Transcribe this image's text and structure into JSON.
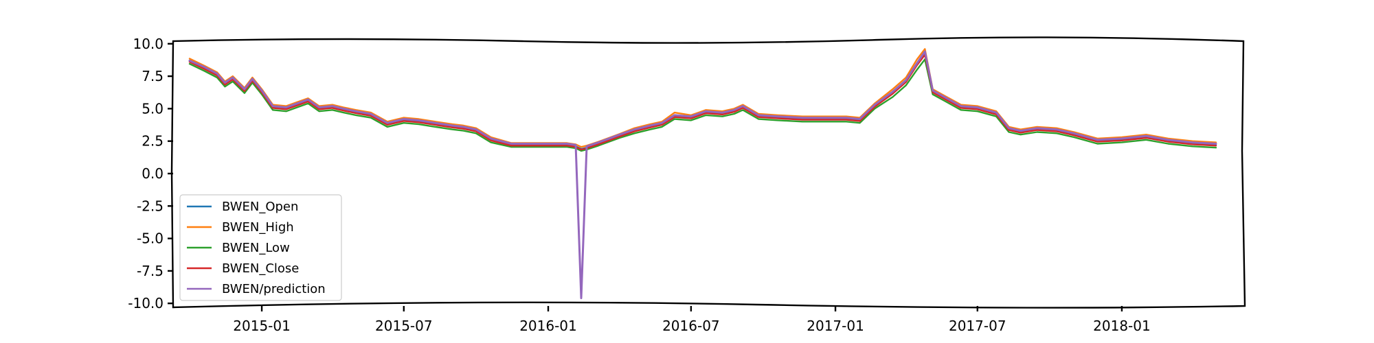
{
  "chart_data": {
    "type": "line",
    "title": "",
    "xlabel": "",
    "ylabel": "",
    "ylim": [
      -10.2,
      10.2
    ],
    "xlim": [
      "2014-09-10",
      "2018-06-05"
    ],
    "grid": false,
    "legend_position": "lower-left",
    "y_ticks": [
      {
        "value": 10.0,
        "label": "10.0"
      },
      {
        "value": 7.5,
        "label": "7.5"
      },
      {
        "value": 5.0,
        "label": "5.0"
      },
      {
        "value": 2.5,
        "label": "2.5"
      },
      {
        "value": 0.0,
        "label": "0.0"
      },
      {
        "value": -2.5,
        "label": "-2.5"
      },
      {
        "value": -5.0,
        "label": "-5.0"
      },
      {
        "value": -7.5,
        "label": "-7.5"
      },
      {
        "value": -10.0,
        "label": "-10.0"
      }
    ],
    "x_ticks": [
      {
        "value": "2015-01-01",
        "label": "2015-01"
      },
      {
        "value": "2015-07-01",
        "label": "2015-07"
      },
      {
        "value": "2016-01-01",
        "label": "2016-01"
      },
      {
        "value": "2016-07-01",
        "label": "2016-07"
      },
      {
        "value": "2017-01-01",
        "label": "2017-01"
      },
      {
        "value": "2017-07-01",
        "label": "2017-07"
      },
      {
        "value": "2018-01-01",
        "label": "2018-01"
      }
    ],
    "x": [
      "2014-10-01",
      "2014-10-20",
      "2014-11-05",
      "2014-11-15",
      "2014-11-25",
      "2014-12-10",
      "2014-12-20",
      "2015-01-01",
      "2015-01-15",
      "2015-02-01",
      "2015-02-15",
      "2015-03-01",
      "2015-03-15",
      "2015-04-01",
      "2015-04-15",
      "2015-05-01",
      "2015-05-20",
      "2015-06-10",
      "2015-07-01",
      "2015-07-20",
      "2015-08-10",
      "2015-09-01",
      "2015-09-15",
      "2015-10-01",
      "2015-10-20",
      "2015-11-15",
      "2015-12-10",
      "2016-01-05",
      "2016-01-25",
      "2016-02-05",
      "2016-02-12",
      "2016-02-19",
      "2016-03-05",
      "2016-04-01",
      "2016-04-20",
      "2016-05-10",
      "2016-05-25",
      "2016-06-10",
      "2016-07-01",
      "2016-07-20",
      "2016-08-10",
      "2016-08-25",
      "2016-09-05",
      "2016-09-25",
      "2016-10-20",
      "2016-11-20",
      "2016-12-20",
      "2017-01-15",
      "2017-02-01",
      "2017-02-20",
      "2017-03-15",
      "2017-04-01",
      "2017-04-15",
      "2017-04-25",
      "2017-05-05",
      "2017-05-20",
      "2017-06-10",
      "2017-07-01",
      "2017-07-25",
      "2017-08-10",
      "2017-08-25",
      "2017-09-15",
      "2017-10-10",
      "2017-11-01",
      "2017-12-01",
      "2018-01-01",
      "2018-02-01",
      "2018-03-01",
      "2018-04-01",
      "2018-05-01"
    ],
    "series": [
      {
        "name": "BWEN_Open",
        "color": "#1f77b4",
        "values": [
          8.65,
          8.1,
          7.6,
          6.9,
          7.3,
          6.4,
          7.2,
          6.3,
          5.1,
          5.0,
          5.3,
          5.6,
          5.0,
          5.1,
          4.9,
          4.7,
          4.5,
          3.8,
          4.1,
          4.0,
          3.8,
          3.6,
          3.5,
          3.3,
          2.6,
          2.2,
          2.2,
          2.2,
          2.2,
          2.1,
          1.9,
          2.0,
          2.3,
          2.9,
          3.3,
          3.6,
          3.8,
          4.4,
          4.3,
          4.7,
          4.6,
          4.8,
          5.1,
          4.4,
          4.3,
          4.2,
          4.2,
          4.2,
          4.1,
          5.2,
          6.2,
          7.1,
          8.4,
          9.2,
          6.3,
          5.8,
          5.1,
          5.0,
          4.6,
          3.4,
          3.2,
          3.4,
          3.3,
          3.0,
          2.5,
          2.6,
          2.8,
          2.5,
          2.3,
          2.2
        ]
      },
      {
        "name": "BWEN_High",
        "color": "#ff7f0e",
        "values": [
          8.85,
          8.3,
          7.8,
          7.1,
          7.5,
          6.6,
          7.4,
          6.5,
          5.3,
          5.2,
          5.5,
          5.8,
          5.2,
          5.3,
          5.1,
          4.9,
          4.7,
          4.0,
          4.3,
          4.2,
          4.0,
          3.8,
          3.7,
          3.5,
          2.8,
          2.35,
          2.35,
          2.35,
          2.35,
          2.25,
          2.05,
          2.15,
          2.45,
          3.05,
          3.5,
          3.8,
          4.0,
          4.7,
          4.5,
          4.9,
          4.8,
          5.0,
          5.3,
          4.6,
          4.5,
          4.4,
          4.4,
          4.4,
          4.3,
          5.4,
          6.5,
          7.4,
          8.8,
          9.6,
          6.5,
          6.0,
          5.3,
          5.2,
          4.8,
          3.6,
          3.4,
          3.6,
          3.5,
          3.2,
          2.7,
          2.8,
          3.0,
          2.7,
          2.5,
          2.4
        ]
      },
      {
        "name": "BWEN_Low",
        "color": "#2ca02c",
        "values": [
          8.45,
          7.9,
          7.4,
          6.7,
          7.1,
          6.2,
          7.0,
          6.1,
          4.9,
          4.8,
          5.1,
          5.4,
          4.8,
          4.9,
          4.7,
          4.5,
          4.3,
          3.6,
          3.9,
          3.8,
          3.6,
          3.4,
          3.3,
          3.1,
          2.4,
          2.05,
          2.05,
          2.05,
          2.05,
          1.95,
          1.75,
          1.85,
          2.15,
          2.75,
          3.1,
          3.4,
          3.6,
          4.2,
          4.1,
          4.5,
          4.4,
          4.6,
          4.9,
          4.2,
          4.1,
          4.0,
          4.0,
          4.0,
          3.9,
          5.0,
          5.9,
          6.8,
          8.0,
          8.8,
          6.1,
          5.6,
          4.9,
          4.8,
          4.4,
          3.2,
          3.0,
          3.2,
          3.1,
          2.8,
          2.3,
          2.4,
          2.6,
          2.3,
          2.1,
          2.0
        ]
      },
      {
        "name": "BWEN_Close",
        "color": "#d62728",
        "values": [
          8.6,
          8.05,
          7.55,
          6.85,
          7.25,
          6.35,
          7.15,
          6.25,
          5.05,
          4.95,
          5.25,
          5.55,
          4.95,
          5.05,
          4.85,
          4.65,
          4.45,
          3.75,
          4.05,
          3.95,
          3.75,
          3.55,
          3.45,
          3.25,
          2.55,
          2.15,
          2.15,
          2.15,
          2.15,
          2.05,
          1.85,
          1.95,
          2.25,
          2.85,
          3.25,
          3.55,
          3.75,
          4.35,
          4.25,
          4.65,
          4.55,
          4.75,
          5.05,
          4.35,
          4.25,
          4.15,
          4.15,
          4.15,
          4.05,
          5.15,
          6.15,
          7.05,
          8.35,
          9.15,
          6.25,
          5.75,
          5.05,
          4.95,
          4.55,
          3.35,
          3.15,
          3.35,
          3.25,
          2.95,
          2.45,
          2.55,
          2.75,
          2.45,
          2.25,
          2.15
        ]
      },
      {
        "name": "BWEN/prediction",
        "color": "#9467bd",
        "values": [
          8.7,
          8.2,
          7.7,
          7.0,
          7.4,
          6.5,
          7.3,
          6.4,
          5.2,
          5.1,
          5.4,
          5.7,
          5.1,
          5.2,
          5.0,
          4.8,
          4.6,
          3.9,
          4.2,
          4.1,
          3.9,
          3.7,
          3.6,
          3.4,
          2.7,
          2.3,
          2.3,
          2.3,
          2.3,
          2.2,
          -9.6,
          2.1,
          2.4,
          3.0,
          3.4,
          3.7,
          3.9,
          4.5,
          4.4,
          4.8,
          4.7,
          4.9,
          5.2,
          4.5,
          4.4,
          4.3,
          4.3,
          4.3,
          4.2,
          5.3,
          6.3,
          7.2,
          8.5,
          9.4,
          6.4,
          5.9,
          5.2,
          5.1,
          4.7,
          3.5,
          3.3,
          3.5,
          3.4,
          3.1,
          2.6,
          2.7,
          2.9,
          2.6,
          2.4,
          2.3
        ]
      }
    ]
  }
}
